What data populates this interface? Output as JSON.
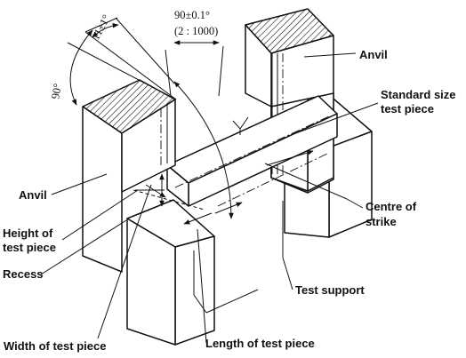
{
  "labels": {
    "anvil_top": "Anvil",
    "anvil_left": "Anvil",
    "standard_line1": "Standard size",
    "standard_line2": "test piece",
    "centre_line1": "Centre of",
    "centre_line2": "strike",
    "height_line1": "Height of",
    "height_line2": "test piece",
    "recess": "Recess",
    "test_support": "Test support",
    "width": "Width of test piece",
    "length": "Length of test piece"
  },
  "dimensions": {
    "angle_small": "11±1°",
    "angle_large": "90°",
    "angle_notch": "90±0.1°",
    "ratio": "(2 : 1000)"
  }
}
